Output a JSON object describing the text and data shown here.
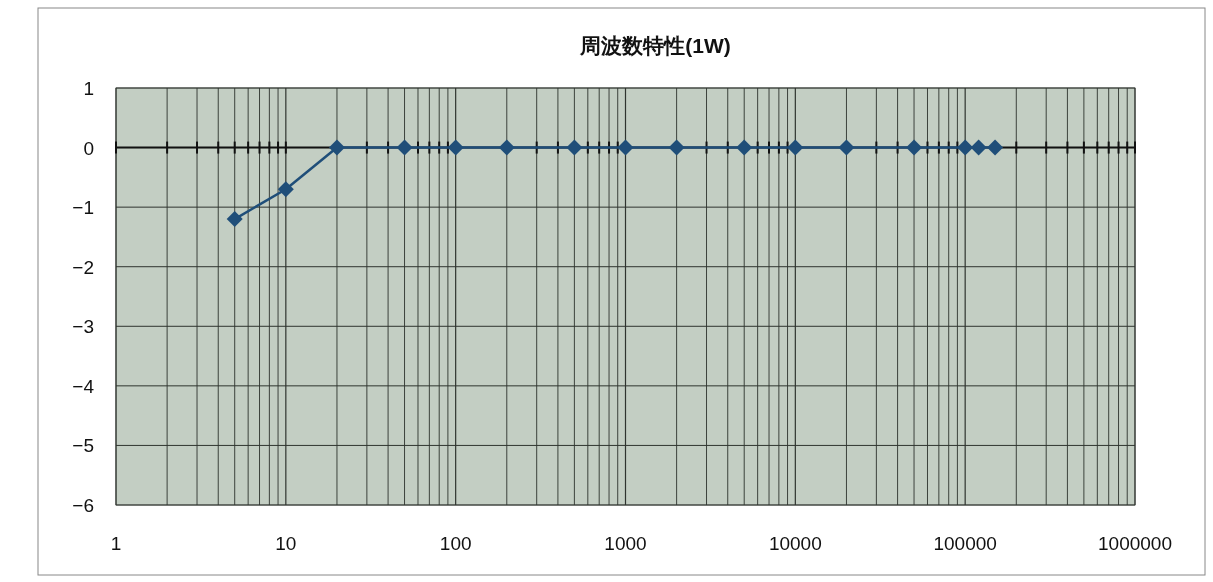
{
  "chart_data": {
    "type": "line",
    "title": "周波数特性(1W)",
    "x": [
      5,
      10,
      20,
      50,
      100,
      200,
      500,
      1000,
      2000,
      5000,
      10000,
      20000,
      50000,
      100000,
      120000,
      150000
    ],
    "series": [
      {
        "color": "#1f4e79",
        "values": [
          -1.2,
          -0.7,
          0,
          0,
          0,
          0,
          0,
          0,
          0,
          0,
          0,
          0,
          0,
          0,
          0,
          0
        ]
      }
    ],
    "log": "x",
    "xlim": [
      1,
      1000000
    ],
    "xticks": [
      1,
      10,
      100,
      1000,
      10000,
      100000,
      1000000
    ],
    "ylim": [
      -6,
      1
    ],
    "yticks": [
      -6,
      -5,
      -4,
      -3,
      -2,
      -1,
      0,
      1
    ],
    "grid": true,
    "marker": "diamond",
    "line_style": "solid"
  }
}
